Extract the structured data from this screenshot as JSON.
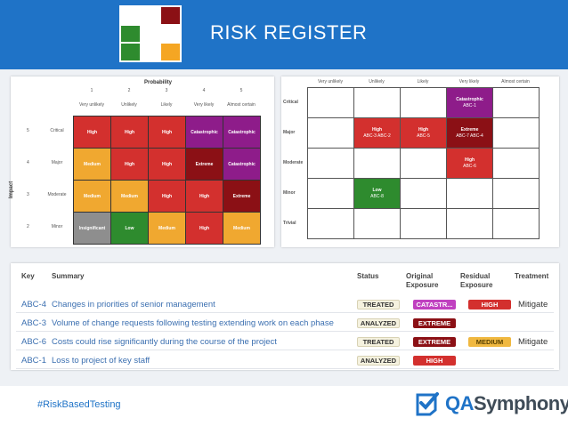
{
  "header": {
    "title": "RISK REGISTER",
    "logo_colors": [
      "#ffffff",
      "#ffffff",
      "#8b1015",
      "#2e8b2e",
      "#ffffff",
      "#ffffff",
      "#2e8b2e",
      "#ffffff",
      "#f5a623"
    ]
  },
  "matrix1": {
    "title": "Probability",
    "col_numbers": [
      "1",
      "2",
      "3",
      "4",
      "5"
    ],
    "columns": [
      "Very unlikely",
      "Unlikely",
      "Likely",
      "Very likely",
      "Almost certain"
    ],
    "axis_label": "Impact",
    "row_numbers": [
      "5",
      "4",
      "3",
      "2"
    ],
    "rows": [
      {
        "label": "Critical",
        "cells": [
          {
            "t": "High",
            "c": "#d3302e"
          },
          {
            "t": "High",
            "c": "#d3302e"
          },
          {
            "t": "High",
            "c": "#d3302e"
          },
          {
            "t": "Catastrophic",
            "c": "#8e1c8a"
          },
          {
            "t": "Catastrophic",
            "c": "#8e1c8a"
          }
        ]
      },
      {
        "label": "Major",
        "cells": [
          {
            "t": "Medium",
            "c": "#f0a830"
          },
          {
            "t": "High",
            "c": "#d3302e"
          },
          {
            "t": "High",
            "c": "#d3302e"
          },
          {
            "t": "Extreme",
            "c": "#8b1015"
          },
          {
            "t": "Catastrophic",
            "c": "#8e1c8a"
          }
        ]
      },
      {
        "label": "Moderate",
        "cells": [
          {
            "t": "Medium",
            "c": "#f0a830"
          },
          {
            "t": "Medium",
            "c": "#f0a830"
          },
          {
            "t": "High",
            "c": "#d3302e"
          },
          {
            "t": "High",
            "c": "#d3302e"
          },
          {
            "t": "Extreme",
            "c": "#8b1015"
          }
        ]
      },
      {
        "label": "Minor",
        "cells": [
          {
            "t": "Insignificant",
            "c": "#8e8e8e"
          },
          {
            "t": "Low",
            "c": "#2e8b2e"
          },
          {
            "t": "Medium",
            "c": "#f0a830"
          },
          {
            "t": "High",
            "c": "#d3302e"
          },
          {
            "t": "Medium",
            "c": "#f0a830"
          }
        ]
      }
    ]
  },
  "matrix2": {
    "columns": [
      "Very unlikely",
      "Unlikely",
      "Likely",
      "Very likely",
      "Almost certain"
    ],
    "rows": [
      "Critical",
      "Major",
      "Moderate",
      "Minor",
      "Trivial"
    ],
    "entries": [
      {
        "r": 0,
        "c": 3,
        "t": "Catastrophic",
        "ids": "ABC-1",
        "color": "#8e1c8a"
      },
      {
        "r": 1,
        "c": 1,
        "t": "High",
        "ids": "ABC-3  ABC-2",
        "color": "#d3302e"
      },
      {
        "r": 1,
        "c": 2,
        "t": "High",
        "ids": "ABC-5",
        "color": "#d3302e"
      },
      {
        "r": 1,
        "c": 3,
        "t": "Extreme",
        "ids": "ABC-7  ABC-4",
        "color": "#8b1015"
      },
      {
        "r": 2,
        "c": 3,
        "t": "High",
        "ids": "ABC-6",
        "color": "#d3302e"
      },
      {
        "r": 3,
        "c": 1,
        "t": "Low",
        "ids": "ABC-8",
        "color": "#2e8b2e"
      }
    ]
  },
  "table": {
    "headers": {
      "key": "Key",
      "summary": "Summary",
      "status": "Status",
      "orig": "Original Exposure",
      "resid": "Residual Exposure",
      "treat": "Treatment"
    },
    "rows": [
      {
        "key": "ABC-4",
        "summary": "Changes in priorities of senior management",
        "status": "TREATED",
        "orig": "CATASTR...",
        "orig_color": "#c040c0",
        "resid": "HIGH",
        "resid_color": "#d3302e",
        "treat": "Mitigate"
      },
      {
        "key": "ABC-3",
        "summary": "Volume of change requests following testing extending work on each phase",
        "status": "ANALYZED",
        "orig": "EXTREME",
        "orig_color": "#8b1015",
        "resid": "",
        "resid_color": "",
        "treat": ""
      },
      {
        "key": "ABC-6",
        "summary": "Costs could rise significantly during the course of the project",
        "status": "TREATED",
        "orig": "EXTREME",
        "orig_color": "#8b1015",
        "resid": "MEDIUM",
        "resid_color": "#f0b840",
        "treat": "Mitigate"
      },
      {
        "key": "ABC-1",
        "summary": "Loss to project of key staff",
        "status": "ANALYZED",
        "orig": "HIGH",
        "orig_color": "#d3302e",
        "resid": "",
        "resid_color": "",
        "treat": ""
      }
    ]
  },
  "footer": {
    "hashtag": "#RiskBasedTesting",
    "brand_a": "QA",
    "brand_b": "Symphony"
  }
}
